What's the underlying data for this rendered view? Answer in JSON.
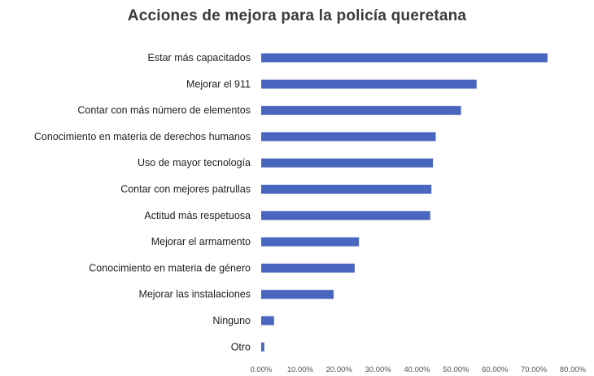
{
  "chart_data": {
    "type": "bar",
    "orientation": "horizontal",
    "title": "Acciones de mejora para la policía queretana",
    "xlabel": "",
    "ylabel": "",
    "categories": [
      "Estar más capacitados",
      "Mejorar el 911",
      "Contar con más número de elementos",
      "Conocimiento en materia de derechos humanos",
      "Uso de mayor tecnología",
      "Contar con mejores patrullas",
      "Actitud más respetuosa",
      "Mejorar el armamento",
      "Conocimiento en materia de género",
      "Mejorar las instalaciones",
      "Ninguno",
      "Otro"
    ],
    "values": [
      73.5,
      55.3,
      51.3,
      44.8,
      44.1,
      43.7,
      43.4,
      25.1,
      24.0,
      18.6,
      3.3,
      0.8
    ],
    "xlim": [
      0,
      80
    ],
    "xticks": [
      "0.00%",
      "10.00%",
      "20.00%",
      "30.00%",
      "40.00%",
      "50.00%",
      "60.00%",
      "70.00%",
      "80.00%"
    ],
    "grid": false,
    "legend": "none",
    "colors": {
      "bar": "#4a67c0",
      "text": "#1f1f1f",
      "tick": "#555555",
      "title": "#3a3a3a"
    }
  }
}
